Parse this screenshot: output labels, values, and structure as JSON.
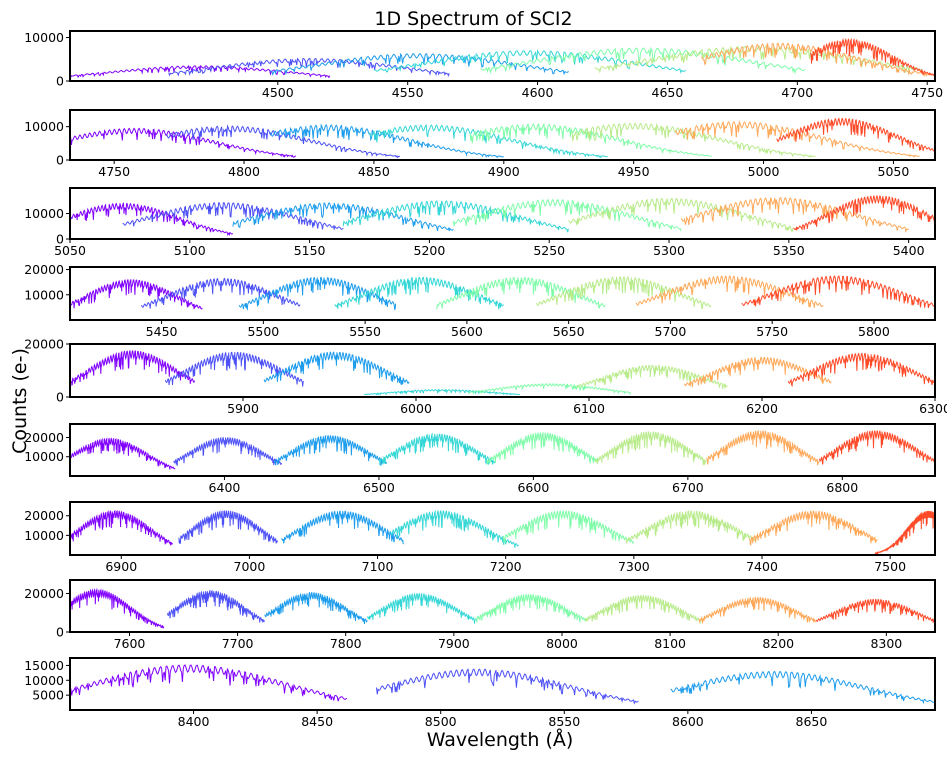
{
  "chart_data": {
    "type": "line",
    "title": "1D Spectrum of SCI2",
    "xlabel": "Wavelength (Å)",
    "ylabel": "Counts (e-)",
    "palette": [
      "#8000ff",
      "#4c50f6",
      "#1c9ced",
      "#34d7d6",
      "#7efca8",
      "#b8eb8a",
      "#ffa858",
      "#ff4a28"
    ],
    "panels": [
      {
        "xlim": [
          4420,
          4753
        ],
        "ylim": [
          0,
          11500
        ],
        "xticks": [
          4500,
          4550,
          4600,
          4650,
          4700,
          4750
        ],
        "yticks": [
          0,
          10000
        ],
        "orders": [
          {
            "start": 4420,
            "end": 4520,
            "peak": 4470,
            "amp": 3500
          },
          {
            "start": 4458,
            "end": 4566,
            "peak": 4512,
            "amp": 5200
          },
          {
            "start": 4497,
            "end": 4612,
            "peak": 4554,
            "amp": 6300
          },
          {
            "start": 4537,
            "end": 4657,
            "peak": 4597,
            "amp": 7000
          },
          {
            "start": 4578,
            "end": 4703,
            "peak": 4640,
            "amp": 7600
          },
          {
            "start": 4622,
            "end": 4748,
            "peak": 4684,
            "amp": 8000
          },
          {
            "start": 4663,
            "end": 4753,
            "peak": 4693,
            "amp": 8700
          },
          {
            "start": 4705,
            "end": 4753,
            "peak": 4720,
            "amp": 9600
          }
        ]
      },
      {
        "xlim": [
          4733,
          5066
        ],
        "ylim": [
          0,
          15000
        ],
        "xticks": [
          4750,
          4800,
          4850,
          4900,
          4950,
          5000,
          5050
        ],
        "yticks": [
          0,
          10000
        ],
        "orders": [
          {
            "start": 4733,
            "end": 4820,
            "peak": 4758,
            "amp": 9500
          },
          {
            "start": 4770,
            "end": 4860,
            "peak": 4794,
            "amp": 10200
          },
          {
            "start": 4810,
            "end": 4900,
            "peak": 4832,
            "amp": 10500
          },
          {
            "start": 4848,
            "end": 4940,
            "peak": 4871,
            "amp": 10500
          },
          {
            "start": 4887,
            "end": 4980,
            "peak": 4912,
            "amp": 10800
          },
          {
            "start": 4926,
            "end": 5020,
            "peak": 4950,
            "amp": 11000
          },
          {
            "start": 4966,
            "end": 5060,
            "peak": 4990,
            "amp": 11500
          },
          {
            "start": 5005,
            "end": 5066,
            "peak": 5030,
            "amp": 12500
          }
        ]
      },
      {
        "xlim": [
          5050,
          5411
        ],
        "ylim": [
          0,
          20000
        ],
        "xticks": [
          5050,
          5100,
          5150,
          5200,
          5250,
          5300,
          5350,
          5400
        ],
        "yticks": [
          0,
          10000
        ],
        "orders": [
          {
            "start": 5050,
            "end": 5118,
            "peak": 5072,
            "amp": 14000
          },
          {
            "start": 5072,
            "end": 5164,
            "peak": 5114,
            "amp": 14300
          },
          {
            "start": 5118,
            "end": 5210,
            "peak": 5158,
            "amp": 14200
          },
          {
            "start": 5164,
            "end": 5258,
            "peak": 5205,
            "amp": 15000
          },
          {
            "start": 5210,
            "end": 5305,
            "peak": 5252,
            "amp": 15500
          },
          {
            "start": 5258,
            "end": 5352,
            "peak": 5300,
            "amp": 16000
          },
          {
            "start": 5305,
            "end": 5400,
            "peak": 5345,
            "amp": 16300
          },
          {
            "start": 5352,
            "end": 5411,
            "peak": 5387,
            "amp": 17000
          }
        ]
      },
      {
        "xlim": [
          5405,
          5830
        ],
        "ylim": [
          0,
          21000
        ],
        "xticks": [
          5450,
          5500,
          5550,
          5600,
          5650,
          5700,
          5750,
          5800
        ],
        "yticks": [
          10000,
          20000
        ],
        "orders": [
          {
            "start": 5405,
            "end": 5470,
            "peak": 5435,
            "amp": 16000
          },
          {
            "start": 5440,
            "end": 5518,
            "peak": 5480,
            "amp": 16500
          },
          {
            "start": 5488,
            "end": 5565,
            "peak": 5528,
            "amp": 17000
          },
          {
            "start": 5535,
            "end": 5618,
            "peak": 5577,
            "amp": 17000
          },
          {
            "start": 5585,
            "end": 5668,
            "peak": 5626,
            "amp": 17000
          },
          {
            "start": 5634,
            "end": 5720,
            "peak": 5676,
            "amp": 17200
          },
          {
            "start": 5683,
            "end": 5775,
            "peak": 5728,
            "amp": 17500
          },
          {
            "start": 5735,
            "end": 5830,
            "peak": 5782,
            "amp": 17500
          }
        ]
      },
      {
        "xlim": [
          5800,
          6300
        ],
        "ylim": [
          0,
          20000
        ],
        "xticks": [
          5900,
          6000,
          6100,
          6200,
          6300
        ],
        "yticks": [
          0,
          20000
        ],
        "orders": [
          {
            "start": 5800,
            "end": 5872,
            "peak": 5836,
            "amp": 17500
          },
          {
            "start": 5855,
            "end": 5935,
            "peak": 5895,
            "amp": 17000
          },
          {
            "start": 5912,
            "end": 5996,
            "peak": 5953,
            "amp": 17000
          },
          {
            "start": 5970,
            "end": 6060,
            "peak": 6015,
            "amp": 2800
          },
          {
            "start": 6030,
            "end": 6124,
            "peak": 6077,
            "amp": 5000
          },
          {
            "start": 6093,
            "end": 6180,
            "peak": 6137,
            "amp": 12000
          },
          {
            "start": 6155,
            "end": 6240,
            "peak": 6200,
            "amp": 15000
          },
          {
            "start": 6215,
            "end": 6300,
            "peak": 6258,
            "amp": 16500
          }
        ]
      },
      {
        "xlim": [
          6300,
          6860
        ],
        "ylim": [
          0,
          27000
        ],
        "xticks": [
          6400,
          6500,
          6600,
          6700,
          6800
        ],
        "yticks": [
          10000,
          20000
        ],
        "orders": [
          {
            "start": 6300,
            "end": 6368,
            "peak": 6326,
            "amp": 19500
          },
          {
            "start": 6367,
            "end": 6437,
            "peak": 6401,
            "amp": 20000
          },
          {
            "start": 6432,
            "end": 6505,
            "peak": 6468,
            "amp": 21000
          },
          {
            "start": 6500,
            "end": 6575,
            "peak": 6537,
            "amp": 22000
          },
          {
            "start": 6570,
            "end": 6642,
            "peak": 6606,
            "amp": 22500
          },
          {
            "start": 6640,
            "end": 6712,
            "peak": 6676,
            "amp": 23000
          },
          {
            "start": 6712,
            "end": 6785,
            "peak": 6747,
            "amp": 23500
          },
          {
            "start": 6785,
            "end": 6860,
            "peak": 6822,
            "amp": 23500
          }
        ]
      },
      {
        "xlim": [
          6860,
          7535
        ],
        "ylim": [
          0,
          27000
        ],
        "xticks": [
          6900,
          7000,
          7100,
          7200,
          7300,
          7400,
          7500
        ],
        "yticks": [
          10000,
          20000
        ],
        "orders": [
          {
            "start": 6860,
            "end": 6940,
            "peak": 6895,
            "amp": 22500
          },
          {
            "start": 6945,
            "end": 7022,
            "peak": 6982,
            "amp": 22500
          },
          {
            "start": 7025,
            "end": 7120,
            "peak": 7072,
            "amp": 22500
          },
          {
            "start": 7110,
            "end": 7210,
            "peak": 7150,
            "amp": 22500
          },
          {
            "start": 7198,
            "end": 7300,
            "peak": 7245,
            "amp": 22500
          },
          {
            "start": 7294,
            "end": 7395,
            "peak": 7345,
            "amp": 22500
          },
          {
            "start": 7390,
            "end": 7490,
            "peak": 7440,
            "amp": 22500
          },
          {
            "start": 7488,
            "end": 7535,
            "peak": 7530,
            "amp": 22500
          }
        ]
      },
      {
        "xlim": [
          7545,
          8345
        ],
        "ylim": [
          0,
          27000
        ],
        "xticks": [
          7600,
          7700,
          7800,
          7900,
          8000,
          8100,
          8200,
          8300
        ],
        "yticks": [
          0,
          20000
        ],
        "orders": [
          {
            "start": 7545,
            "end": 7632,
            "peak": 7570,
            "amp": 22000
          },
          {
            "start": 7635,
            "end": 7725,
            "peak": 7675,
            "amp": 21500
          },
          {
            "start": 7725,
            "end": 7820,
            "peak": 7768,
            "amp": 20500
          },
          {
            "start": 7820,
            "end": 7920,
            "peak": 7868,
            "amp": 20000
          },
          {
            "start": 7920,
            "end": 8022,
            "peak": 7970,
            "amp": 19500
          },
          {
            "start": 8022,
            "end": 8128,
            "peak": 8074,
            "amp": 19000
          },
          {
            "start": 8127,
            "end": 8235,
            "peak": 8180,
            "amp": 18000
          },
          {
            "start": 8235,
            "end": 8345,
            "peak": 8290,
            "amp": 17000
          }
        ]
      },
      {
        "xlim": [
          8350,
          8700
        ],
        "ylim": [
          0,
          17500
        ],
        "xticks": [
          8400,
          8450,
          8500,
          8550,
          8600,
          8650
        ],
        "yticks": [
          5000,
          10000,
          15000
        ],
        "orders": [
          {
            "start": 8350,
            "end": 8462,
            "peak": 8398,
            "amp": 15200
          },
          {
            "start": 8474,
            "end": 8580,
            "peak": 8515,
            "amp": 13800
          },
          {
            "start": 8593,
            "end": 8700,
            "peak": 8635,
            "amp": 13000
          }
        ]
      }
    ]
  }
}
